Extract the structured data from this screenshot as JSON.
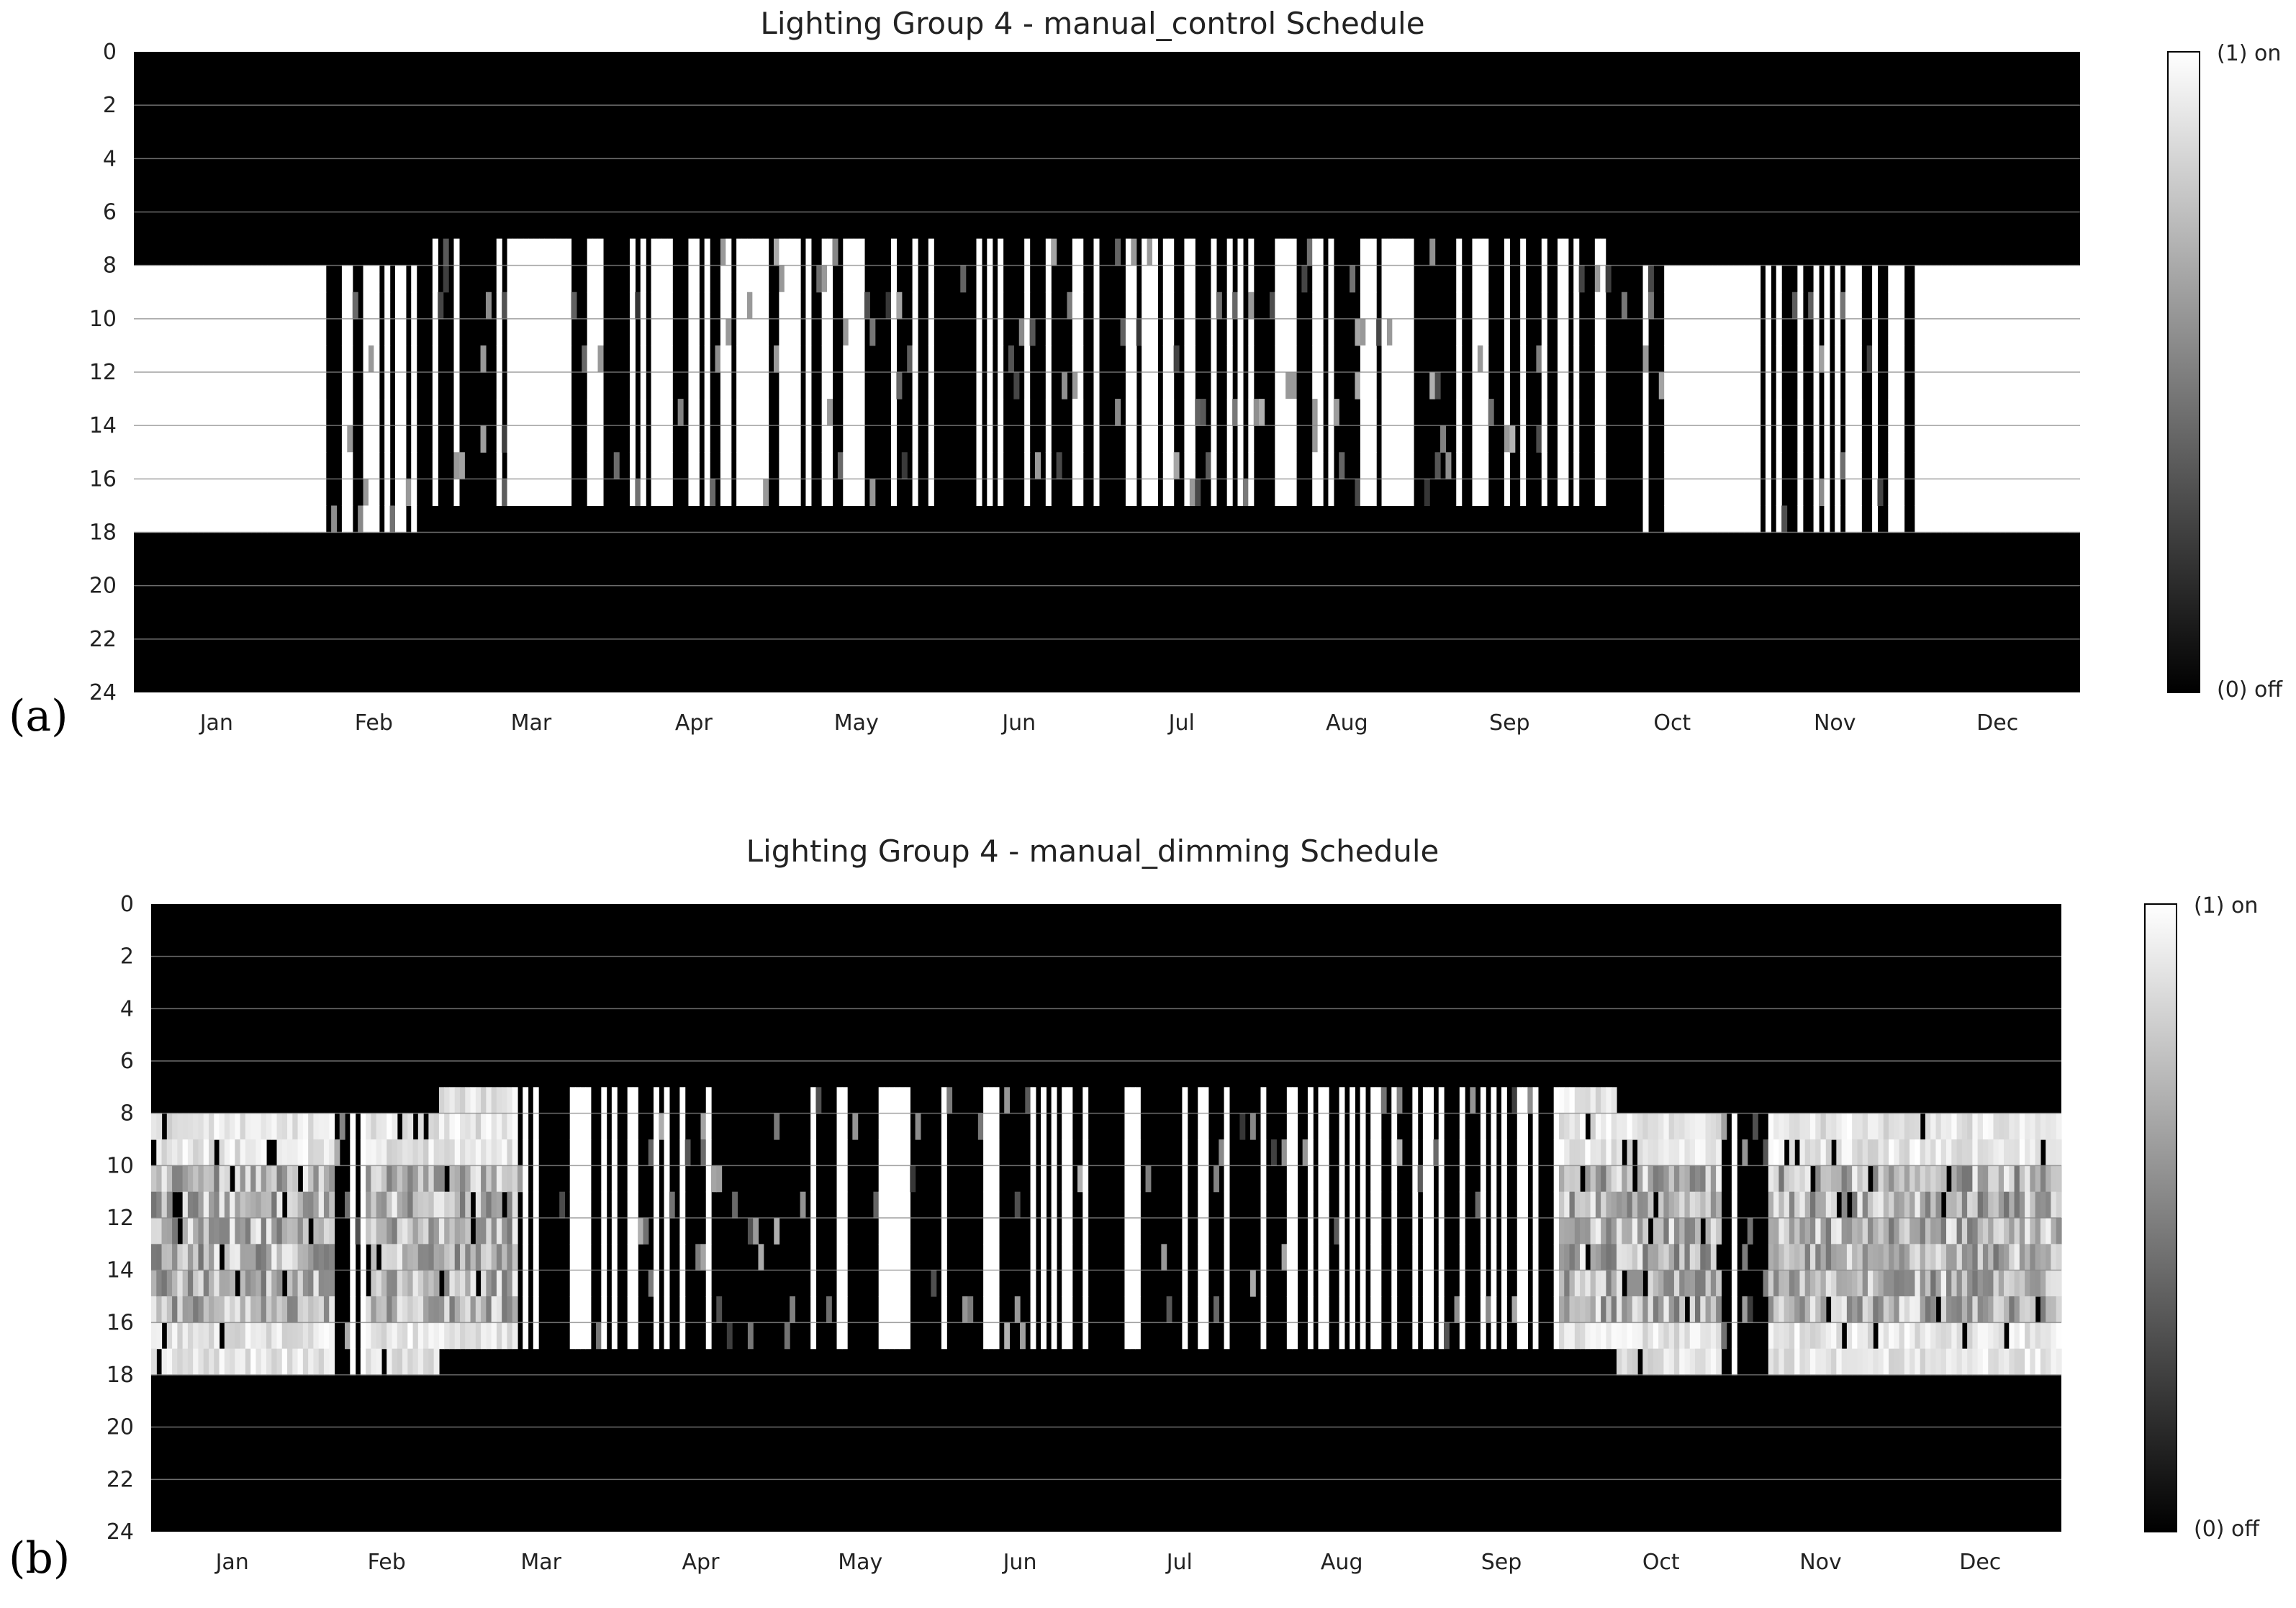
{
  "chart_data": [
    {
      "type": "heatmap",
      "panel_label": "(a)",
      "title": "Lighting Group 4 - manual_control Schedule",
      "xlabel": "",
      "ylabel": "",
      "months": [
        "Jan",
        "Feb",
        "Mar",
        "Apr",
        "May",
        "Jun",
        "Jul",
        "Aug",
        "Sep",
        "Oct",
        "Nov",
        "Dec"
      ],
      "yticks": [
        "0",
        "2",
        "4",
        "6",
        "8",
        "10",
        "12",
        "14",
        "16",
        "18",
        "20",
        "22",
        "24"
      ],
      "ylim": [
        0,
        24
      ],
      "xlim_days": [
        1,
        365
      ],
      "colorbar": {
        "max_label": "(1) on",
        "min_label": "(0) off",
        "range": [
          0,
          1
        ]
      },
      "grid": true,
      "baseline_on_window_hours": [
        {
          "days": [
            1,
            55
          ],
          "start": 8,
          "end": 18
        },
        {
          "days": [
            56,
            280
          ],
          "start": 7,
          "end": 17
        },
        {
          "days": [
            281,
            365
          ],
          "start": 8,
          "end": 18
        }
      ],
      "fully_on_day_ranges": [
        [
          1,
          35
        ],
        [
          71,
          78
        ],
        [
          289,
          305
        ],
        [
          335,
          365
        ]
      ],
      "partial_day_ranges": [
        [
          36,
          70
        ],
        [
          79,
          288
        ],
        [
          306,
          334
        ]
      ]
    },
    {
      "type": "heatmap",
      "panel_label": "(b)",
      "title": "Lighting Group 4 - manual_dimming Schedule",
      "xlabel": "",
      "ylabel": "",
      "months": [
        "Jan",
        "Feb",
        "Mar",
        "Apr",
        "May",
        "Jun",
        "Jul",
        "Aug",
        "Sep",
        "Oct",
        "Nov",
        "Dec"
      ],
      "yticks": [
        "0",
        "2",
        "4",
        "6",
        "8",
        "10",
        "12",
        "14",
        "16",
        "18",
        "20",
        "22",
        "24"
      ],
      "ylim": [
        0,
        24
      ],
      "xlim_days": [
        1,
        365
      ],
      "colorbar": {
        "max_label": "(1) on",
        "min_label": "(0) off",
        "range": [
          0,
          1
        ]
      },
      "grid": true,
      "baseline_on_window_hours": [
        {
          "days": [
            1,
            55
          ],
          "start": 8,
          "end": 18
        },
        {
          "days": [
            56,
            280
          ],
          "start": 7,
          "end": 17
        },
        {
          "days": [
            281,
            365
          ],
          "start": 8,
          "end": 18
        }
      ],
      "dimmed_day_ranges": [
        [
          1,
          35
        ],
        [
          42,
          70
        ],
        [
          270,
          300
        ],
        [
          310,
          365
        ]
      ],
      "partial_day_ranges": [
        [
          36,
          41
        ],
        [
          71,
          269
        ],
        [
          301,
          309
        ]
      ]
    }
  ]
}
